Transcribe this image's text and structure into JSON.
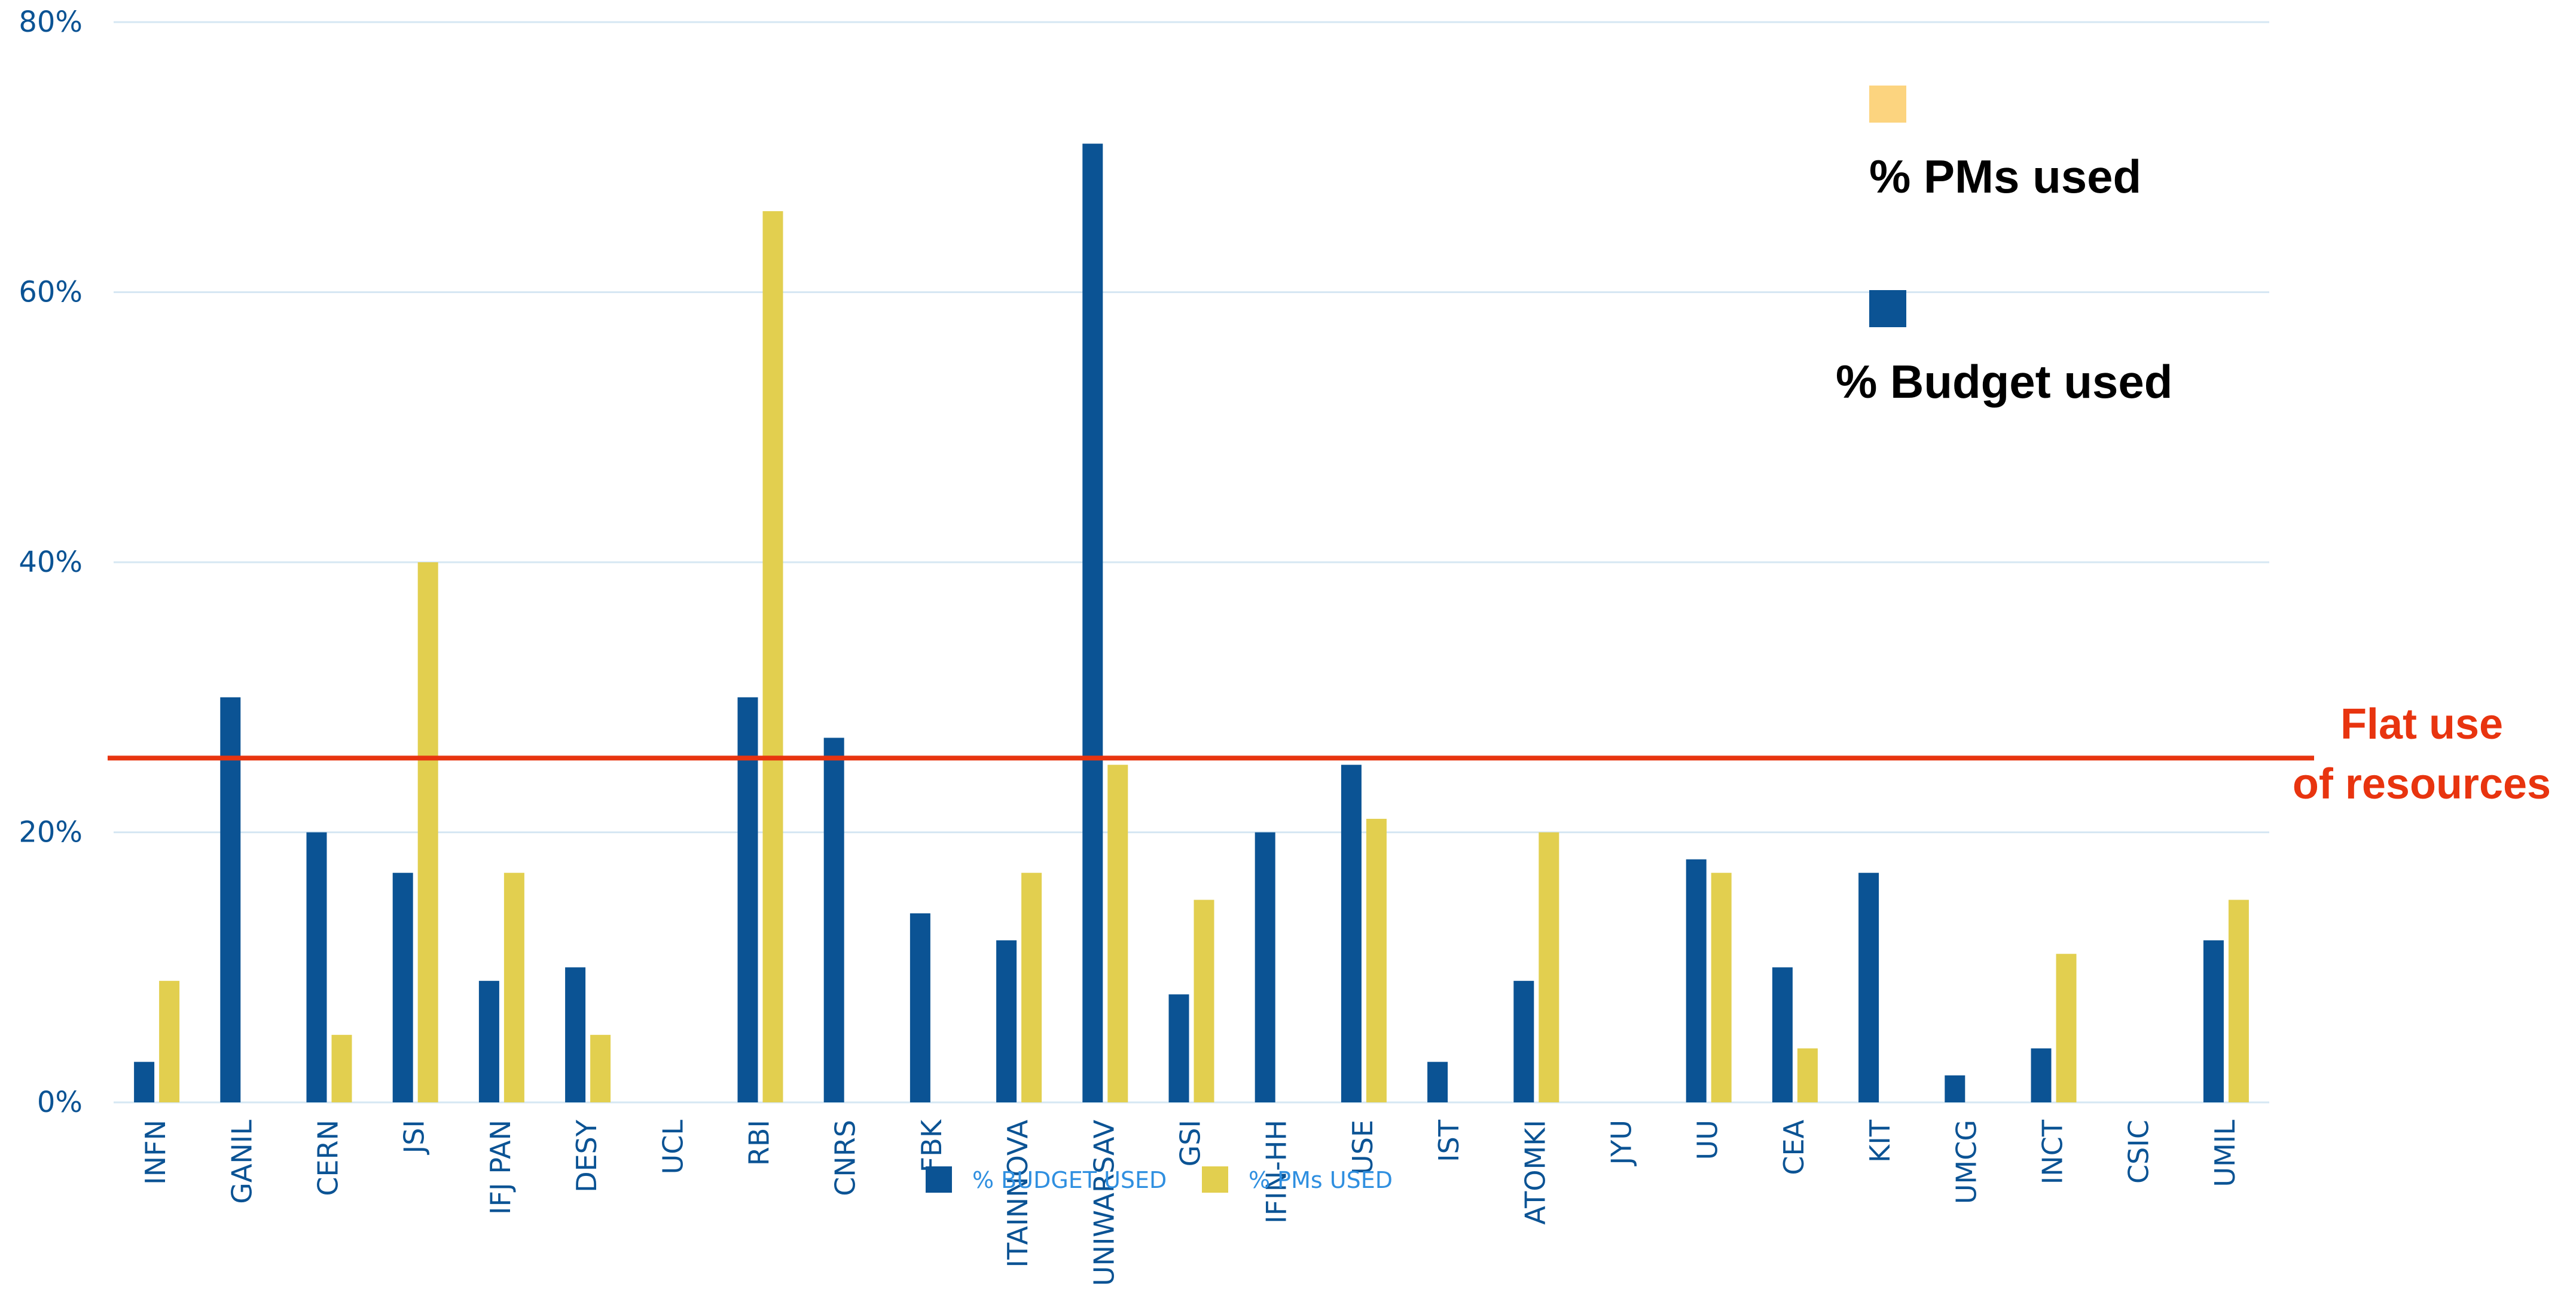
{
  "chart_data": {
    "type": "bar",
    "categories": [
      "INFN",
      "GANIL",
      "CERN",
      "JSI",
      "IFJ PAN",
      "DESY",
      "UCL",
      "RBI",
      "CNRS",
      "FBK",
      "ITAINNOVA",
      "UNIWARSAV",
      "GSI",
      "IFIN-HH",
      "USE",
      "IST",
      "ATOMKI",
      "JYU",
      "UU",
      "CEA",
      "KIT",
      "UMCG",
      "INCT",
      "CSIC",
      "UMIL"
    ],
    "series": [
      {
        "name": "% BUDGET USED",
        "color": "#0b5394",
        "values": [
          3,
          30,
          20,
          17,
          9,
          10,
          0,
          30,
          27,
          14,
          12,
          71,
          8,
          20,
          25,
          3,
          9,
          0,
          18,
          10,
          17,
          2,
          4,
          0,
          12
        ]
      },
      {
        "name": "% PMs USED",
        "color": "#e2cf4f",
        "values": [
          9,
          0,
          5,
          40,
          17,
          5,
          0,
          66,
          0,
          0,
          17,
          25,
          15,
          0,
          21,
          0,
          20,
          0,
          17,
          4,
          0,
          0,
          11,
          0,
          15
        ]
      }
    ],
    "ylim": [
      0,
      80
    ],
    "yticks": [
      "0%",
      "20%",
      "40%",
      "60%",
      "80%"
    ],
    "ytick_values": [
      0,
      20,
      40,
      60,
      80
    ],
    "grid": true,
    "legend_position": "bottom-center",
    "reference_line": {
      "value": 25.5,
      "color": "#e8340f",
      "label_line1": "Flat use",
      "label_line2": "of resources"
    },
    "overlay_legend": [
      {
        "label": "% PMs used",
        "color": "#fcd47f"
      },
      {
        "label": "% Budget used",
        "color": "#0b5394"
      }
    ]
  }
}
